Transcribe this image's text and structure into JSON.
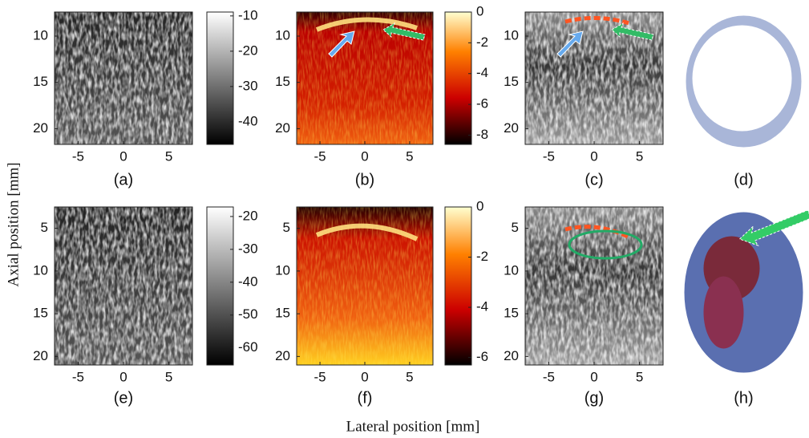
{
  "axis_labels": {
    "y": "Axial position [mm]",
    "x": "Lateral position [mm]"
  },
  "chart_data": [
    {
      "type": "image",
      "label": "(a)",
      "colormap": "gray",
      "xlim": [
        -7.6,
        7.6
      ],
      "ylim": [
        7.4,
        21.7
      ],
      "xticks": [
        -5,
        0,
        5
      ],
      "yticks": [
        10,
        15,
        20
      ],
      "colorbar": {
        "lim": [
          -46.4,
          -8.9
        ],
        "ticks": [
          -10,
          -20,
          -30,
          -40
        ]
      }
    },
    {
      "type": "image",
      "label": "(b)",
      "colormap": "hot",
      "xlim": [
        -7.6,
        7.6
      ],
      "ylim": [
        7.4,
        21.7
      ],
      "xticks": [
        -5,
        0,
        5
      ],
      "yticks": [
        10,
        15,
        20
      ],
      "colorbar": {
        "lim": [
          -8.6,
          0
        ],
        "ticks": [
          0,
          -2,
          -4,
          -6,
          -8
        ]
      }
    },
    {
      "type": "image",
      "label": "(c)",
      "colormap": "overlay",
      "xlim": [
        -7.6,
        7.6
      ],
      "ylim": [
        7.4,
        21.7
      ],
      "xticks": [
        -5,
        0,
        5
      ],
      "yticks": [
        10,
        15,
        20
      ]
    },
    {
      "type": "photo",
      "label": "(d)"
    },
    {
      "type": "image",
      "label": "(e)",
      "colormap": "gray",
      "xlim": [
        -7.6,
        7.6
      ],
      "ylim": [
        2.5,
        21
      ],
      "xticks": [
        -5,
        0,
        5
      ],
      "yticks": [
        5,
        10,
        15,
        20
      ],
      "colorbar": {
        "lim": [
          -65.2,
          -17.1
        ],
        "ticks": [
          -20,
          -30,
          -40,
          -50,
          -60
        ]
      }
    },
    {
      "type": "image",
      "label": "(f)",
      "colormap": "hot",
      "xlim": [
        -7.6,
        7.6
      ],
      "ylim": [
        2.5,
        21
      ],
      "xticks": [
        -5,
        0,
        5
      ],
      "yticks": [
        5,
        10,
        15,
        20
      ],
      "colorbar": {
        "lim": [
          -6.3,
          0
        ],
        "ticks": [
          0,
          -2,
          -4,
          -6
        ]
      }
    },
    {
      "type": "image",
      "label": "(g)",
      "colormap": "overlay",
      "xlim": [
        -7.6,
        7.6
      ],
      "ylim": [
        2.5,
        21
      ],
      "xticks": [
        -5,
        0,
        5
      ],
      "yticks": [
        5,
        10,
        15,
        20
      ]
    },
    {
      "type": "photo",
      "label": "(h)"
    }
  ]
}
